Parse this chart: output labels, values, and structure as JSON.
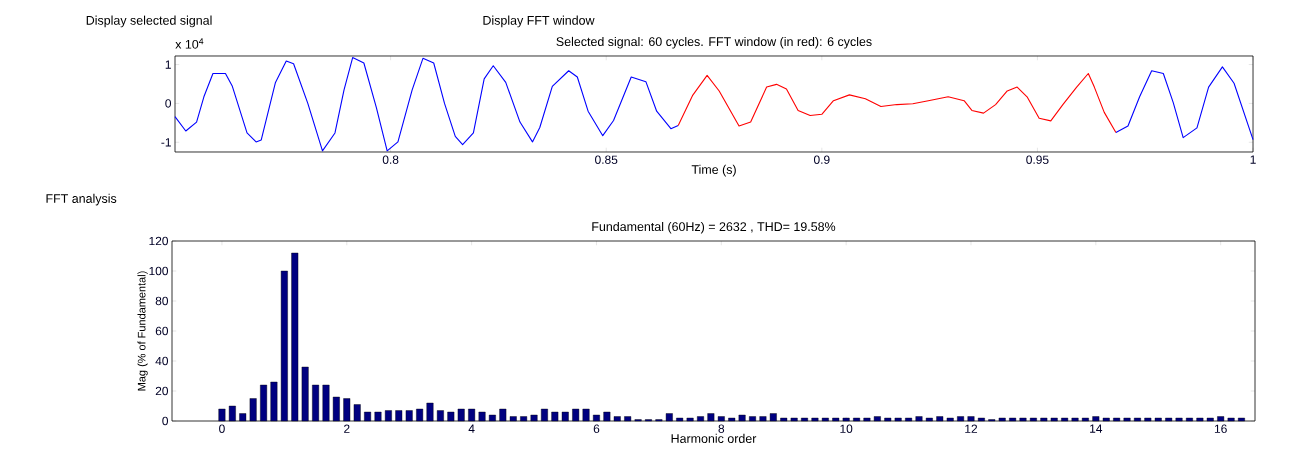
{
  "chart_data": [
    {
      "type": "line",
      "title": "Selected signal: 60 cycles. FFT window (in red): 6 cycles",
      "xlabel": "Time (s)",
      "annotations": [
        "Display selected signal",
        "Display FFT window",
        "x 10$^{4}$"
      ],
      "xlim": [
        0.75,
        1
      ],
      "xticks": [
        0.8,
        0.85,
        0.9,
        0.95,
        1
      ],
      "ylim": [
        -1.25,
        1.22
      ],
      "yticks": [
        -1,
        0,
        1
      ],
      "series": [
        {
          "color": "#0000ff",
          "x": [
            0.75,
            0.7525,
            0.755,
            0.7567,
            0.7588,
            0.7617,
            0.7633,
            0.7667,
            0.7688,
            0.77,
            0.7733,
            0.7758,
            0.7775,
            0.7808,
            0.7842,
            0.7871,
            0.7892,
            0.7912,
            0.7938,
            0.7967,
            0.7992,
            0.8017,
            0.805,
            0.8075,
            0.81,
            0.8125,
            0.815,
            0.8167,
            0.8192,
            0.8217,
            0.8238,
            0.8267,
            0.83,
            0.8329,
            0.8346,
            0.8375,
            0.8413,
            0.8433,
            0.8458,
            0.8492,
            0.8517,
            0.8558,
            0.8592,
            0.8617,
            0.865,
            0.8667
          ],
          "values": [
            -0.34,
            -0.71,
            -0.48,
            0.17,
            0.77,
            0.77,
            0.44,
            -0.76,
            -0.99,
            -0.94,
            0.54,
            1.09,
            1.02,
            0,
            -1.22,
            -0.76,
            0.35,
            1.18,
            1.04,
            -0.11,
            -1.22,
            -0.99,
            0.35,
            1.16,
            1.04,
            0,
            -0.85,
            -1.06,
            -0.76,
            0.63,
            0.97,
            0.54,
            -0.48,
            -0.99,
            -0.62,
            0.44,
            0.84,
            0.68,
            -0.2,
            -0.83,
            -0.44,
            0.68,
            0.56,
            -0.2,
            -0.65,
            -0.57
          ]
        },
        {
          "color": "#ff0000",
          "x": [
            0.8667,
            0.87,
            0.8734,
            0.8762,
            0.8808,
            0.8835,
            0.8872,
            0.8895,
            0.8918,
            0.8945,
            0.8973,
            0.9,
            0.9027,
            0.9064,
            0.9101,
            0.9137,
            0.9174,
            0.9211,
            0.9247,
            0.9293,
            0.933,
            0.9348,
            0.9375,
            0.9403,
            0.943,
            0.9453,
            0.9476,
            0.9504,
            0.9531,
            0.9559,
            0.9591,
            0.9618,
            0.9632,
            0.9655,
            0.9682
          ],
          "values": [
            -0.57,
            0.2,
            0.72,
            0.32,
            -0.58,
            -0.48,
            0.42,
            0.49,
            0.37,
            -0.18,
            -0.31,
            -0.28,
            0.07,
            0.22,
            0.12,
            -0.08,
            -0.03,
            -0.01,
            0.07,
            0.17,
            0.07,
            -0.18,
            -0.25,
            -0.03,
            0.32,
            0.42,
            0.17,
            -0.38,
            -0.45,
            -0.03,
            0.42,
            0.77,
            0.42,
            -0.23,
            -0.75
          ]
        },
        {
          "color": "#0000ff",
          "x": [
            0.9682,
            0.971,
            0.9737,
            0.9765,
            0.9792,
            0.9815,
            0.9838,
            0.987,
            0.9897,
            0.9929,
            0.9956,
            1.0
          ],
          "values": [
            -0.75,
            -0.58,
            0.17,
            0.84,
            0.77,
            0.02,
            -0.88,
            -0.63,
            0.42,
            0.94,
            0.52,
            -0.93
          ]
        }
      ]
    },
    {
      "type": "bar",
      "title": "Fundamental (60Hz) = 2632 , THD= 19.58%",
      "xlabel": "Harmonic order",
      "ylabel": "Mag (% of Fundamental)",
      "annotations": [
        "FFT analysis"
      ],
      "xlim": [
        -0.8,
        16.55
      ],
      "xticks": [
        0,
        2,
        4,
        6,
        8,
        10,
        12,
        14,
        16
      ],
      "ylim": [
        0,
        120
      ],
      "yticks": [
        0,
        20,
        40,
        60,
        80,
        100,
        120
      ],
      "color": "#000080",
      "x": [
        0,
        0.167,
        0.333,
        0.5,
        0.667,
        0.833,
        1,
        1.167,
        1.333,
        1.5,
        1.667,
        1.833,
        2,
        2.167,
        2.333,
        2.5,
        2.667,
        2.833,
        3,
        3.167,
        3.333,
        3.5,
        3.667,
        3.833,
        4,
        4.167,
        4.333,
        4.5,
        4.667,
        4.833,
        5,
        5.167,
        5.333,
        5.5,
        5.667,
        5.833,
        6,
        6.167,
        6.333,
        6.5,
        6.667,
        6.833,
        7,
        7.167,
        7.333,
        7.5,
        7.667,
        7.833,
        8,
        8.167,
        8.333,
        8.5,
        8.667,
        8.833,
        9,
        9.167,
        9.333,
        9.5,
        9.667,
        9.833,
        10,
        10.167,
        10.333,
        10.5,
        10.667,
        10.833,
        11,
        11.167,
        11.333,
        11.5,
        11.667,
        11.833,
        12,
        12.167,
        12.333,
        12.5,
        12.667,
        12.833,
        13,
        13.167,
        13.333,
        13.5,
        13.667,
        13.833,
        14,
        14.167,
        14.333,
        14.5,
        14.667,
        14.833,
        15,
        15.167,
        15.333,
        15.5,
        15.667,
        15.833,
        16,
        16.167,
        16.333
      ],
      "values": [
        8,
        10,
        5,
        15,
        24,
        26,
        100,
        112,
        36,
        24,
        24,
        16,
        15,
        11,
        6,
        6,
        7,
        7,
        7,
        8,
        12,
        7,
        6,
        8,
        8,
        6,
        4,
        8,
        3,
        3,
        4,
        8,
        6,
        6,
        8,
        8,
        4,
        6,
        3,
        3,
        1,
        1,
        1,
        5,
        2,
        2,
        3,
        5,
        3,
        2,
        4,
        3,
        3,
        5,
        2,
        2,
        2,
        2,
        2,
        2,
        2,
        2,
        2,
        3,
        2,
        2,
        2,
        3,
        2,
        3,
        2,
        3,
        3,
        2,
        1,
        2,
        2,
        2,
        2,
        2,
        2,
        2,
        2,
        2,
        3,
        2,
        2,
        2,
        2,
        2,
        2,
        2,
        2,
        2,
        2,
        2,
        3,
        2,
        2
      ]
    }
  ]
}
